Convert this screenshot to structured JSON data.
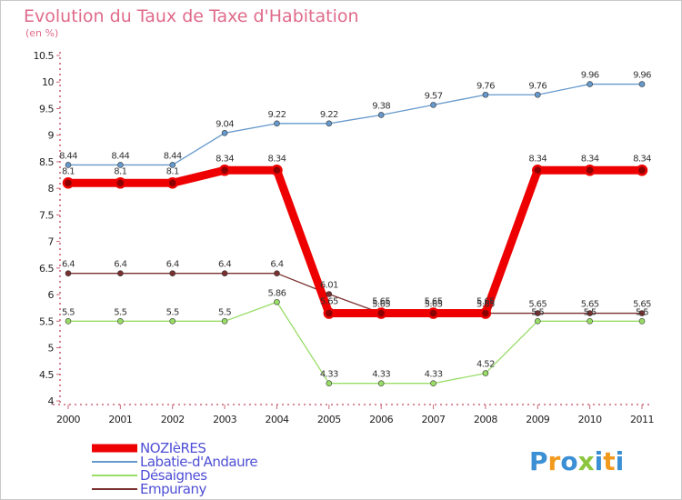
{
  "title": "Evolution du Taux de Taxe d'Habitation",
  "subtitle": "(en %)",
  "brand": "Proxiti",
  "chart_data": {
    "type": "line",
    "x": [
      "2000",
      "2001",
      "2002",
      "2003",
      "2004",
      "2005",
      "2006",
      "2007",
      "2008",
      "2009",
      "2010",
      "2011"
    ],
    "ylim": [
      4,
      10.5
    ],
    "yticks": [
      "4",
      "4.5",
      "5",
      "5.5",
      "6",
      "6.5",
      "7",
      "7.5",
      "8",
      "8.5",
      "9",
      "9.5",
      "10",
      "10.5"
    ],
    "grid": false,
    "legend": "bottom-left",
    "series": [
      {
        "name": "NOZIèRES",
        "color": "#ee0000",
        "values": [
          8.1,
          8.1,
          8.1,
          8.34,
          8.34,
          5.65,
          5.65,
          5.65,
          5.65,
          8.34,
          8.34,
          8.34
        ],
        "labels": [
          "8.1",
          "8.1",
          "8.1",
          "8.34",
          "8.34",
          "5.65",
          "5.65",
          "5.65",
          "5.65",
          "8.34",
          "8.34",
          "8.34"
        ]
      },
      {
        "name": "Labatie-d'Andaure",
        "color": "#6699cc",
        "values": [
          8.44,
          8.44,
          8.44,
          9.04,
          9.22,
          9.22,
          9.38,
          9.57,
          9.76,
          9.76,
          9.96,
          9.96
        ],
        "labels": [
          "8.44",
          "8.44",
          "8.44",
          "9.04",
          "9.22",
          "9.22",
          "9.38",
          "9.57",
          "9.76",
          "9.76",
          "9.96",
          "9.96"
        ]
      },
      {
        "name": "Désaignes",
        "color": "#99dd66",
        "values": [
          5.5,
          5.5,
          5.5,
          5.5,
          5.86,
          4.33,
          4.33,
          4.33,
          4.52,
          5.5,
          5.5,
          5.5
        ],
        "labels": [
          "5.5",
          "5.5",
          "5.5",
          "5.5",
          "5.86",
          "4.33",
          "4.33",
          "4.33",
          "4.52",
          "5.5",
          "5.5",
          "5.5"
        ]
      },
      {
        "name": "Empurany",
        "color": "#7a3030",
        "values": [
          6.4,
          6.4,
          6.4,
          6.4,
          6.4,
          6.01,
          5.65,
          5.65,
          5.65,
          5.65,
          5.65,
          5.65
        ],
        "labels": [
          "6.4",
          "6.4",
          "6.4",
          "6.4",
          "6.4",
          "6.01",
          "5.65",
          "5.65",
          "5.65",
          "5.65",
          "5.65",
          "5.65"
        ]
      }
    ]
  }
}
